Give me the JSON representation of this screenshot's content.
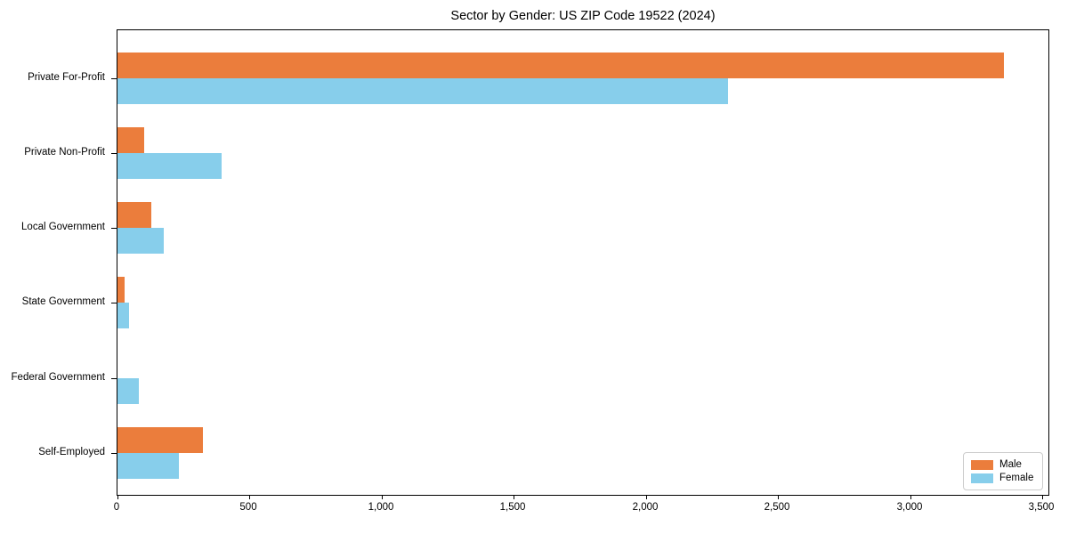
{
  "chart_data": {
    "type": "bar",
    "orientation": "horizontal",
    "title": "Sector by Gender: US ZIP Code 19522 (2024)",
    "categories": [
      "Private For-Profit",
      "Private Non-Profit",
      "Local Government",
      "State Government",
      "Federal Government",
      "Self-Employed"
    ],
    "series": [
      {
        "name": "Male",
        "color": "#eb7d3c",
        "values": [
          3355,
          100,
          127,
          27,
          0,
          322
        ]
      },
      {
        "name": "Female",
        "color": "#87ceeb",
        "values": [
          2310,
          395,
          176,
          44,
          81,
          232
        ]
      }
    ],
    "xlabel": "",
    "ylabel": "",
    "xlim": [
      0,
      3530
    ],
    "xticks": [
      0,
      500,
      1000,
      1500,
      2000,
      2500,
      3000,
      3500
    ],
    "xtick_labels": [
      "0",
      "500",
      "1,000",
      "1,500",
      "2,000",
      "2,500",
      "3,000",
      "3,500"
    ],
    "grid": false,
    "legend_position": "lower right",
    "legend_labels": [
      "Male",
      "Female"
    ]
  }
}
